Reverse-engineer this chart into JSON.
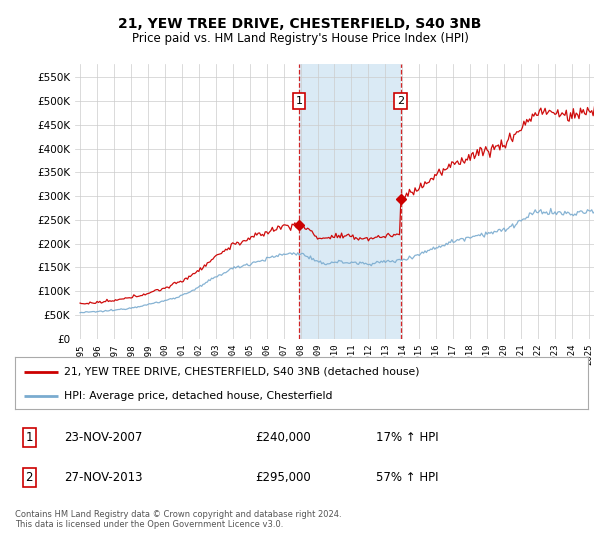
{
  "title": "21, YEW TREE DRIVE, CHESTERFIELD, S40 3NB",
  "subtitle": "Price paid vs. HM Land Registry's House Price Index (HPI)",
  "legend_line1": "21, YEW TREE DRIVE, CHESTERFIELD, S40 3NB (detached house)",
  "legend_line2": "HPI: Average price, detached house, Chesterfield",
  "sale1_date": "23-NOV-2007",
  "sale1_price": 240000,
  "sale1_label": "£240,000",
  "sale1_pct": "17% ↑ HPI",
  "sale2_date": "27-NOV-2013",
  "sale2_price": 295000,
  "sale2_label": "£295,000",
  "sale2_pct": "57% ↑ HPI",
  "footnote": "Contains HM Land Registry data © Crown copyright and database right 2024.\nThis data is licensed under the Open Government Licence v3.0.",
  "xlim_lo": 1994.7,
  "xlim_hi": 2025.3,
  "ylim_lo": 0,
  "ylim_hi": 577000,
  "sale1_year": 2007.9,
  "sale2_year": 2013.9,
  "red_color": "#cc0000",
  "blue_color": "#7aabcf",
  "shade_color": "#daeaf5",
  "grid_color": "#cccccc",
  "background_color": "#ffffff",
  "yticks": [
    0,
    50000,
    100000,
    150000,
    200000,
    250000,
    300000,
    350000,
    400000,
    450000,
    500000,
    550000
  ]
}
